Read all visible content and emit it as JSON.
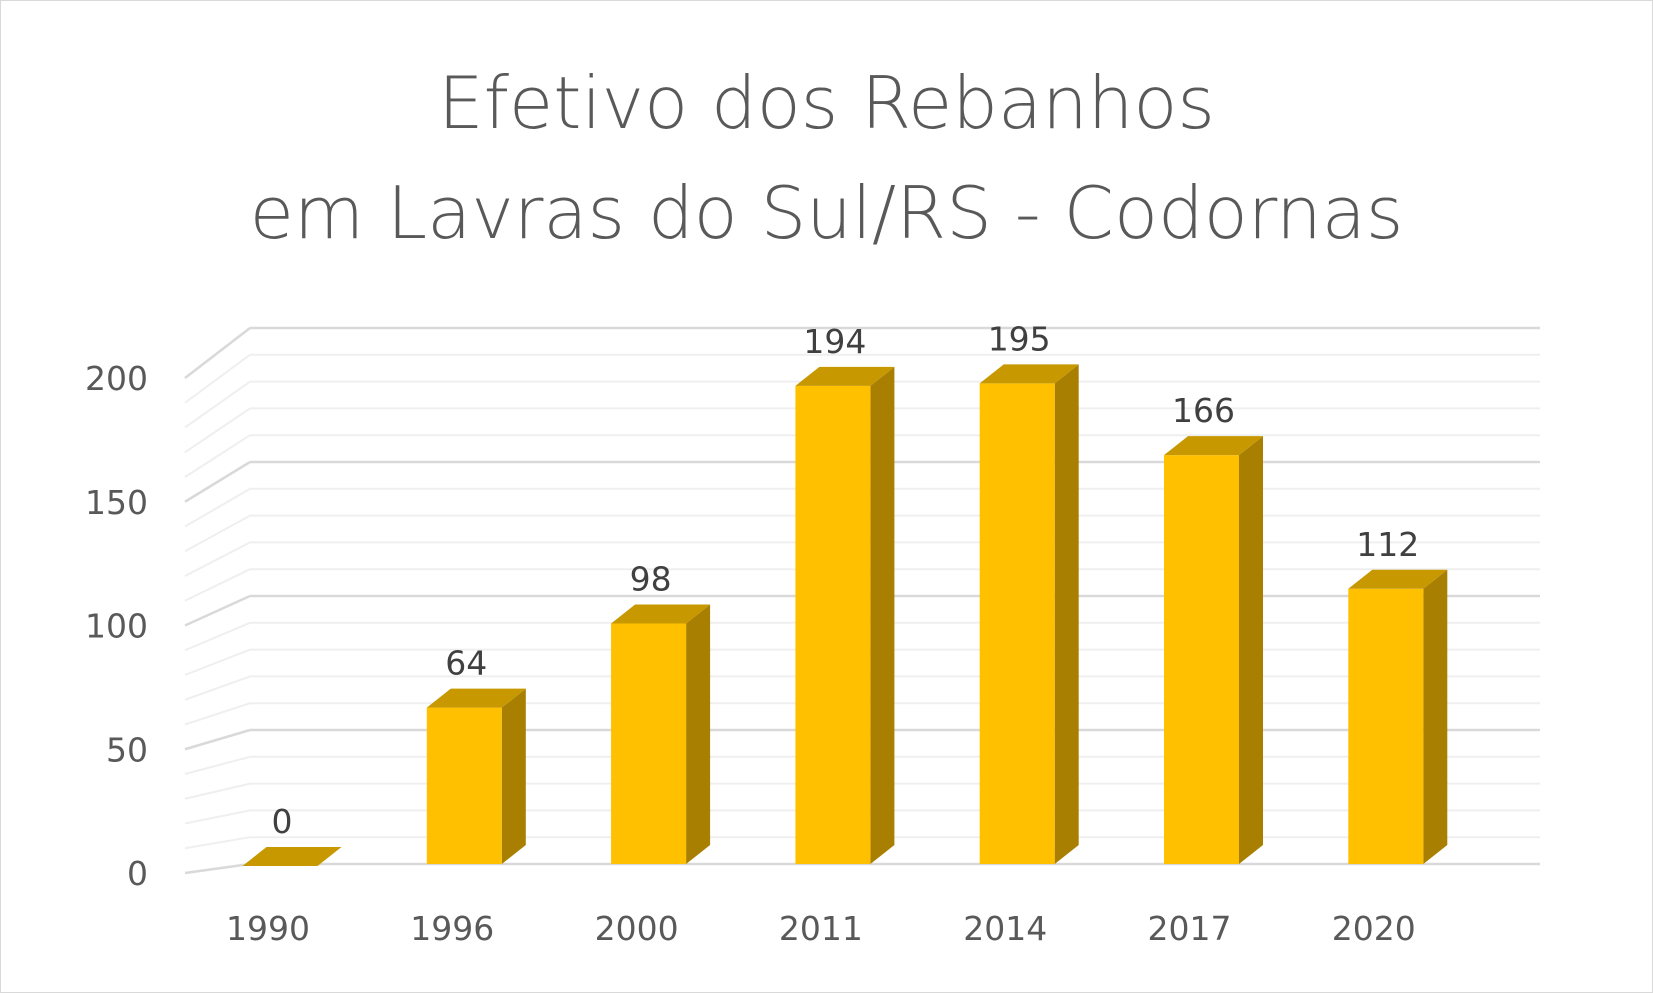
{
  "chart_data": {
    "type": "bar",
    "title_lines": [
      "Efetivo dos Rebanhos",
      "em Lavras do Sul/RS - Codornas"
    ],
    "categories": [
      "1990",
      "1996",
      "2000",
      "2011",
      "2014",
      "2017",
      "2020"
    ],
    "values": [
      0,
      64,
      98,
      194,
      195,
      166,
      112
    ],
    "data_labels": [
      "0",
      "64",
      "98",
      "194",
      "195",
      "166",
      "112"
    ],
    "y_ticks": [
      "0",
      "50",
      "100",
      "150",
      "200"
    ],
    "y_tick_values": [
      0,
      50,
      100,
      150,
      200
    ],
    "ylim": [
      0,
      200
    ],
    "grid": true,
    "legend": "none",
    "colors": {
      "bar_front": "#FFC000",
      "bar_top": "#C79800",
      "bar_side": "#A87F00",
      "gridline": "#d9d9d9",
      "gridline_minor": "#efefef"
    }
  }
}
